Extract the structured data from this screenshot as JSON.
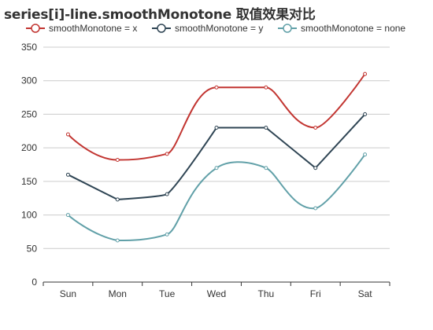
{
  "chart_data": {
    "type": "line",
    "title": "series[i]-line.smoothMonotone 取值效果对比",
    "categories": [
      "Sun",
      "Mon",
      "Tue",
      "Wed",
      "Thu",
      "Fri",
      "Sat"
    ],
    "ylim": [
      0,
      350
    ],
    "yticks": [
      0,
      50,
      100,
      150,
      200,
      250,
      300,
      350
    ],
    "grid": true,
    "legend_position": "top-left",
    "series": [
      {
        "name": "smoothMonotone = x",
        "color": "#c23531",
        "values": [
          220,
          182,
          191,
          290,
          290,
          230,
          310
        ]
      },
      {
        "name": "smoothMonotone = y",
        "color": "#2f4554",
        "values": [
          160,
          123,
          131,
          230,
          230,
          170,
          250
        ]
      },
      {
        "name": "smoothMonotone = none",
        "color": "#61a0a8",
        "values": [
          100,
          62,
          71,
          170,
          170,
          110,
          190
        ]
      }
    ]
  }
}
